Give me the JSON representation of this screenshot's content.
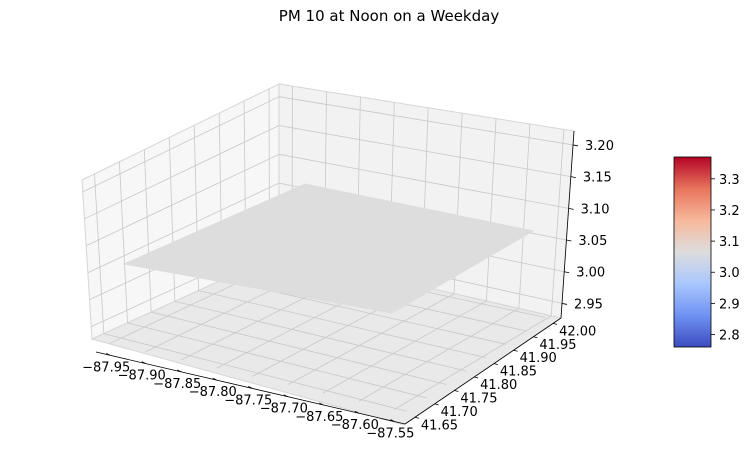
{
  "chart_data": {
    "type": "surface3d",
    "title": "PM 10 at Noon on a Weekday",
    "x": {
      "ticks": [
        -87.95,
        -87.9,
        -87.85,
        -87.8,
        -87.75,
        -87.7,
        -87.65,
        -87.6,
        -87.55
      ],
      "tick_labels": [
        "−87.95",
        "−87.90",
        "−87.85",
        "−87.80",
        "−87.75",
        "−87.70",
        "−87.65",
        "−87.60",
        "−87.55"
      ],
      "label": ""
    },
    "y": {
      "ticks": [
        41.65,
        41.7,
        41.75,
        41.8,
        41.85,
        41.9,
        41.95,
        42.0
      ],
      "tick_labels": [
        "41.65",
        "41.70",
        "41.75",
        "41.80",
        "41.85",
        "41.90",
        "41.95",
        "42.00"
      ],
      "label": ""
    },
    "z": {
      "ticks": [
        2.95,
        3.0,
        3.05,
        3.1,
        3.15,
        3.2
      ],
      "tick_labels": [
        "2.95",
        "3.00",
        "3.05",
        "3.10",
        "3.15",
        "3.20"
      ],
      "label": ""
    },
    "surface": {
      "description_value": 3.0,
      "color": "#dddddd",
      "flat": true
    },
    "colorbar": {
      "colormap": "coolwarm",
      "ticks": [
        "2.8",
        "2.9",
        "3.0",
        "3.1",
        "3.2",
        "3.3"
      ],
      "tick_values": [
        2.8,
        2.9,
        3.0,
        3.1,
        3.2,
        3.3
      ],
      "range": [
        2.76,
        3.37
      ],
      "colors": [
        "#3b4cc0",
        "#6f92f3",
        "#aac7fd",
        "#dddddd",
        "#f7b89c",
        "#e7745b",
        "#b40426"
      ]
    },
    "grid": true
  }
}
